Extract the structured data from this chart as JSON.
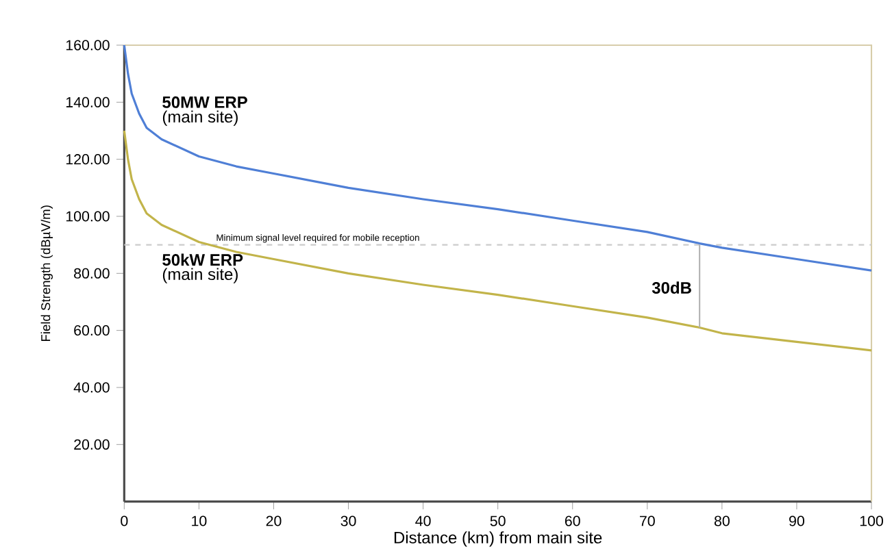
{
  "chart_data": {
    "type": "line",
    "xlabel": "Distance (km) from main site",
    "ylabel": "Field Strength (dBµV/m)",
    "xlim": [
      0,
      100
    ],
    "ylim": [
      0,
      160
    ],
    "xticks": [
      0,
      10,
      20,
      30,
      40,
      50,
      60,
      70,
      80,
      90,
      100
    ],
    "yticks": [
      {
        "value": 20,
        "label": "20.00"
      },
      {
        "value": 40,
        "label": "40.00"
      },
      {
        "value": 60,
        "label": "60.00"
      },
      {
        "value": 80,
        "label": "80.00"
      },
      {
        "value": 100,
        "label": "100.00"
      },
      {
        "value": 120,
        "label": "120.00"
      },
      {
        "value": 140,
        "label": "140.00"
      },
      {
        "value": 160,
        "label": "160.00"
      }
    ],
    "grid": false,
    "marker": "none",
    "line_style": "solid",
    "series": [
      {
        "color": "#4f7fd6",
        "x": [
          0,
          0.5,
          1,
          2,
          3,
          5,
          10,
          15,
          20,
          30,
          40,
          50,
          60,
          70,
          77,
          80,
          90,
          100
        ],
        "values": [
          160,
          150,
          143,
          136,
          131,
          127,
          121,
          117.5,
          115,
          110,
          106,
          102.5,
          98.5,
          94.5,
          90.5,
          89,
          85,
          81
        ]
      },
      {
        "color": "#c2b44a",
        "x": [
          0,
          0.5,
          1,
          2,
          3,
          5,
          10,
          15,
          20,
          30,
          40,
          50,
          60,
          70,
          77,
          80,
          90,
          100
        ],
        "values": [
          130,
          120,
          113,
          106,
          101,
          97,
          91,
          87.5,
          85,
          80,
          76,
          72.5,
          68.5,
          64.5,
          61,
          59,
          56,
          53
        ]
      },
      {
        "color": "#b2b2b2",
        "x": [
          77,
          77
        ],
        "values": [
          90,
          61
        ]
      }
    ],
    "ref_lines": [
      {
        "axis": "y",
        "value": 90,
        "label": "Minimum signal level required for mobile reception",
        "color": "#cccccc",
        "line_style": "dashed"
      }
    ],
    "annotations": [
      "**50MW ERP**",
      "(main site)",
      "**50kW ERP**",
      "(main site)",
      {
        "text": "**30dB**",
        "x": 77,
        "y": 75
      }
    ]
  }
}
